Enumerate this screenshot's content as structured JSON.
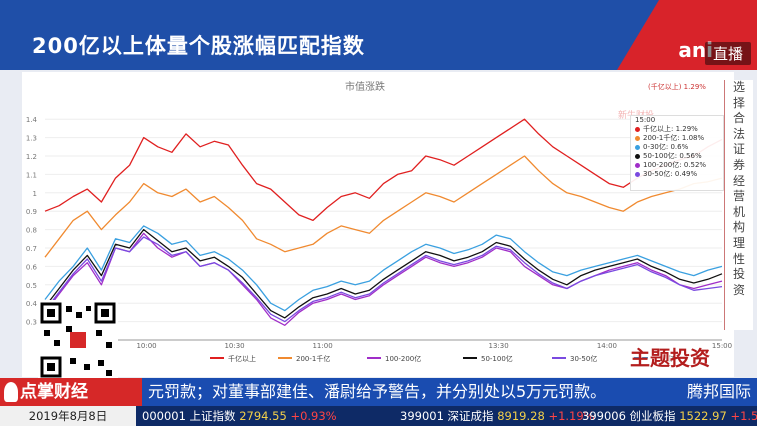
{
  "header": {
    "title": "200亿以上体量个股涨幅匹配指数",
    "brand": "ani",
    "live": "直播"
  },
  "sidebar": {
    "text": [
      "选",
      "择",
      "合",
      "法",
      "证",
      "券",
      "经",
      "营",
      "机",
      "构",
      "理",
      "性",
      "投",
      "资"
    ]
  },
  "chart_data": {
    "type": "line",
    "title": "市值涨跌",
    "corner_note": "(千亿以上) 1.29%",
    "x_ticks": [
      "10:00",
      "10:30",
      "11:00",
      "13:30",
      "14:00",
      "15:00"
    ],
    "y_ticks": [
      0.3,
      0.4,
      0.5,
      0.6,
      0.7,
      0.8,
      0.9,
      1,
      1.1,
      1.2,
      1.3,
      1.4
    ],
    "ylim": [
      0.2,
      1.45
    ],
    "series": [
      {
        "name": "千亿以上",
        "color": "#e02020",
        "values": [
          0.9,
          0.93,
          0.98,
          1.02,
          0.95,
          1.08,
          1.15,
          1.3,
          1.25,
          1.22,
          1.32,
          1.25,
          1.28,
          1.26,
          1.15,
          1.05,
          1.02,
          0.95,
          0.88,
          0.85,
          0.92,
          0.98,
          1.0,
          0.97,
          1.05,
          1.1,
          1.12,
          1.2,
          1.18,
          1.15,
          1.2,
          1.25,
          1.3,
          1.35,
          1.4,
          1.32,
          1.25,
          1.2,
          1.15,
          1.1,
          1.05,
          1.03,
          1.08,
          1.12,
          1.15,
          1.18,
          1.2,
          1.25,
          1.29
        ]
      },
      {
        "name": "200-1千亿",
        "color": "#f08a30",
        "values": [
          0.65,
          0.75,
          0.85,
          0.9,
          0.8,
          0.88,
          0.95,
          1.05,
          1.0,
          0.98,
          1.02,
          0.95,
          0.98,
          0.92,
          0.85,
          0.75,
          0.72,
          0.68,
          0.7,
          0.72,
          0.78,
          0.82,
          0.8,
          0.78,
          0.85,
          0.9,
          0.95,
          1.0,
          0.98,
          0.95,
          1.0,
          1.05,
          1.1,
          1.15,
          1.2,
          1.12,
          1.05,
          1.0,
          0.98,
          0.95,
          0.92,
          0.9,
          0.95,
          0.98,
          1.0,
          1.02,
          1.05,
          1.06,
          1.08
        ]
      },
      {
        "name": "100-200亿",
        "color": "#a02ec8",
        "values": [
          0.35,
          0.45,
          0.55,
          0.62,
          0.5,
          0.7,
          0.68,
          0.78,
          0.7,
          0.65,
          0.68,
          0.6,
          0.62,
          0.58,
          0.5,
          0.42,
          0.32,
          0.28,
          0.35,
          0.4,
          0.42,
          0.45,
          0.42,
          0.44,
          0.5,
          0.55,
          0.6,
          0.65,
          0.62,
          0.6,
          0.62,
          0.65,
          0.7,
          0.68,
          0.6,
          0.55,
          0.5,
          0.48,
          0.52,
          0.55,
          0.58,
          0.6,
          0.62,
          0.58,
          0.55,
          0.5,
          0.48,
          0.5,
          0.52
        ]
      },
      {
        "name": "50-100亿",
        "color": "#111111",
        "values": [
          0.38,
          0.48,
          0.58,
          0.66,
          0.55,
          0.72,
          0.7,
          0.8,
          0.74,
          0.68,
          0.7,
          0.63,
          0.65,
          0.6,
          0.54,
          0.45,
          0.36,
          0.32,
          0.38,
          0.43,
          0.45,
          0.48,
          0.45,
          0.47,
          0.53,
          0.58,
          0.63,
          0.68,
          0.66,
          0.63,
          0.65,
          0.68,
          0.73,
          0.71,
          0.64,
          0.58,
          0.53,
          0.5,
          0.55,
          0.58,
          0.6,
          0.62,
          0.64,
          0.6,
          0.57,
          0.53,
          0.51,
          0.53,
          0.56
        ]
      },
      {
        "name": "30-50亿",
        "color": "#7a4ae0",
        "values": [
          0.36,
          0.46,
          0.56,
          0.64,
          0.52,
          0.7,
          0.68,
          0.76,
          0.72,
          0.66,
          0.68,
          0.6,
          0.62,
          0.58,
          0.51,
          0.43,
          0.34,
          0.3,
          0.36,
          0.41,
          0.43,
          0.46,
          0.43,
          0.45,
          0.51,
          0.56,
          0.61,
          0.66,
          0.63,
          0.61,
          0.63,
          0.66,
          0.71,
          0.69,
          0.62,
          0.56,
          0.51,
          0.48,
          0.52,
          0.55,
          0.57,
          0.59,
          0.61,
          0.57,
          0.54,
          0.5,
          0.47,
          0.48,
          0.49
        ]
      },
      {
        "name": "0-30亿",
        "color": "#3aa0e0",
        "values": [
          0.42,
          0.52,
          0.6,
          0.7,
          0.58,
          0.75,
          0.73,
          0.82,
          0.78,
          0.72,
          0.74,
          0.66,
          0.68,
          0.64,
          0.58,
          0.5,
          0.4,
          0.36,
          0.42,
          0.47,
          0.49,
          0.52,
          0.5,
          0.52,
          0.58,
          0.63,
          0.68,
          0.72,
          0.7,
          0.67,
          0.69,
          0.72,
          0.77,
          0.75,
          0.68,
          0.62,
          0.57,
          0.55,
          0.58,
          0.6,
          0.62,
          0.64,
          0.66,
          0.63,
          0.6,
          0.57,
          0.55,
          0.58,
          0.6
        ]
      }
    ],
    "tooltip": {
      "time": "15:00",
      "rows": [
        {
          "label": "千亿以上: 1.29%",
          "color": "#e02020"
        },
        {
          "label": "200-1千亿: 1.08%",
          "color": "#f08a30"
        },
        {
          "label": "0-30亿: 0.6%",
          "color": "#3aa0e0"
        },
        {
          "label": "50-100亿: 0.56%",
          "color": "#111111"
        },
        {
          "label": "100-200亿: 0.52%",
          "color": "#a02ec8"
        },
        {
          "label": "30-50亿: 0.49%",
          "color": "#7a4ae0"
        }
      ]
    },
    "watermark": "新牛财投"
  },
  "theme_logo": "主题投资",
  "ticker": {
    "logo": "点掌财经",
    "news": "元罚款；对董事部建佳、潘尉给予警告，并分别处以5万元罚款。",
    "news_right": "腾邦国际",
    "date": "2019年8月8日",
    "quotes": [
      {
        "code": "000001 上证指数",
        "price": "2794.55",
        "chg": "+0.93%"
      },
      {
        "code": "399001 深证成指",
        "price": "8919.28",
        "chg": "+1.19%"
      },
      {
        "code": "399006 创业板指",
        "price": "1522.97",
        "chg": "+1.51%"
      }
    ]
  }
}
